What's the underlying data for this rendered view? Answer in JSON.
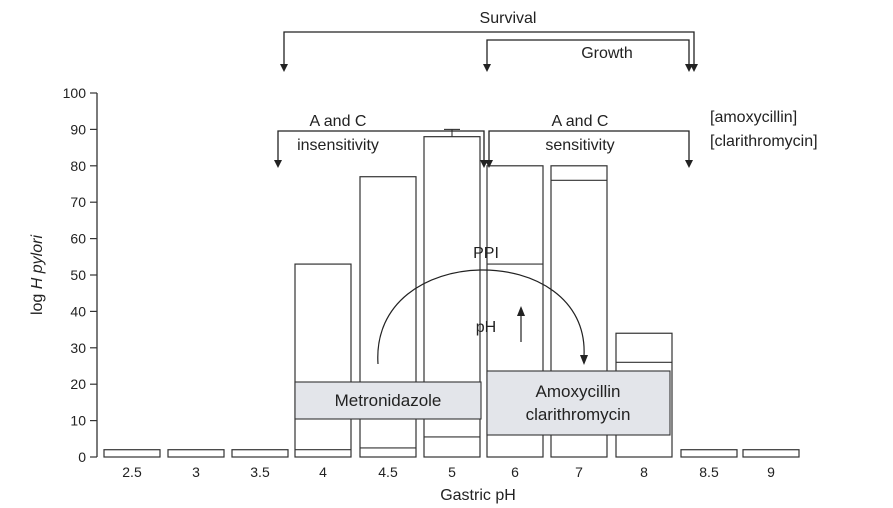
{
  "chart_data": {
    "type": "bar",
    "xlabel": "Gastric pH",
    "ylabel": "log H pylori",
    "ylabel_prefix": "log ",
    "ylabel_italic": "H pylori",
    "ylim": [
      0,
      100
    ],
    "yticks": [
      0,
      10,
      20,
      30,
      40,
      50,
      60,
      70,
      80,
      90,
      100
    ],
    "categories": [
      "2.5",
      "3",
      "3.5",
      "4",
      "4.5",
      "5",
      "6",
      "7",
      "8",
      "8.5",
      "9"
    ],
    "values": [
      2,
      2,
      2,
      53,
      77,
      88,
      80,
      80,
      34,
      2,
      2
    ],
    "inner_levels": [
      null,
      null,
      null,
      2,
      2.5,
      5.5,
      53,
      76,
      26,
      null,
      null
    ],
    "error_bar_top": [
      null,
      null,
      null,
      null,
      null,
      90,
      null,
      null,
      null,
      null,
      null
    ],
    "grid": false,
    "annotations": {
      "survival": "Survival",
      "growth": "Growth",
      "insensitivity_line1": "A and C",
      "insensitivity_line2": "insensitivity",
      "sensitivity_line1": "A and C",
      "sensitivity_line2": "sensitivity",
      "legend_line1": "[amoxycillin]",
      "legend_line2": "[clarithromycin]",
      "ppi": "PPI",
      "ph": "pH",
      "metronidazole": "Metronidazole",
      "amoxy_line1": "Amoxycillin",
      "amoxy_line2": "clarithromycin"
    },
    "colors": {
      "bar_fill": "#ffffff",
      "bar_stroke": "#333333",
      "drug_box_fill": "#e3e5ea"
    }
  }
}
